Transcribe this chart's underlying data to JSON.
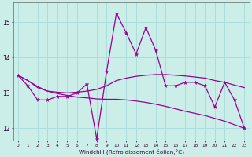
{
  "xlabel": "Windchill (Refroidissement éolien,°C)",
  "background_color": "#cceee8",
  "grid_color": "#aadddd",
  "line_color": "#990099",
  "x_hours": [
    0,
    1,
    2,
    3,
    4,
    5,
    6,
    7,
    8,
    9,
    10,
    11,
    12,
    13,
    14,
    15,
    16,
    17,
    18,
    19,
    20,
    21,
    22,
    23
  ],
  "y_windchill": [
    13.5,
    13.2,
    12.8,
    12.8,
    12.9,
    12.9,
    13.0,
    13.25,
    11.7,
    13.6,
    15.25,
    14.7,
    14.1,
    14.85,
    14.2,
    13.2,
    13.2,
    13.3,
    13.3,
    13.2,
    12.6,
    13.3,
    12.8,
    12.0
  ],
  "y_trend_upper": [
    13.5,
    13.35,
    13.15,
    13.05,
    13.02,
    13.0,
    13.02,
    13.05,
    13.1,
    13.2,
    13.35,
    13.42,
    13.47,
    13.5,
    13.52,
    13.52,
    13.5,
    13.48,
    13.45,
    13.42,
    13.35,
    13.3,
    13.22,
    13.15
  ],
  "y_trend_lower": [
    13.5,
    13.35,
    13.18,
    13.05,
    12.98,
    12.93,
    12.88,
    12.86,
    12.83,
    12.82,
    12.82,
    12.8,
    12.77,
    12.73,
    12.68,
    12.62,
    12.55,
    12.48,
    12.42,
    12.36,
    12.28,
    12.2,
    12.1,
    12.0
  ],
  "ylim": [
    11.65,
    15.55
  ],
  "yticks": [
    12,
    13,
    14,
    15
  ],
  "xticks": [
    0,
    1,
    2,
    3,
    4,
    5,
    6,
    7,
    8,
    9,
    10,
    11,
    12,
    13,
    14,
    15,
    16,
    17,
    18,
    19,
    20,
    21,
    22,
    23
  ],
  "figsize": [
    3.2,
    2.0
  ],
  "dpi": 100
}
